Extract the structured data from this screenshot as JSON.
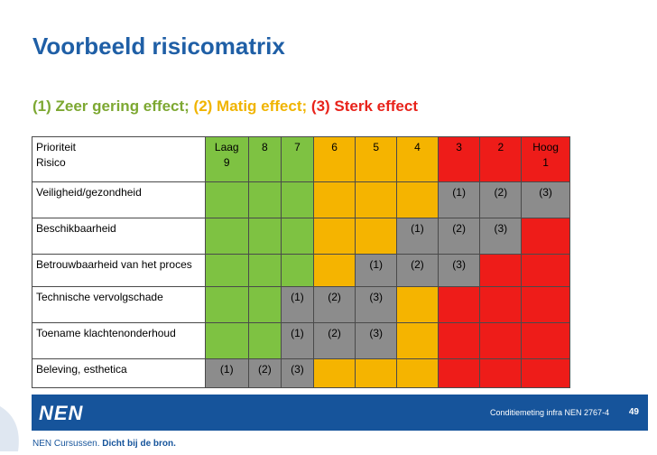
{
  "title": "Voorbeeld risicomatrix",
  "legend": {
    "item1": "(1) Zeer gering effect;",
    "item2": "(2) Matig effect;",
    "item3": "(3) Sterk effect"
  },
  "matrix": {
    "header_label": [
      "Prioriteit",
      "Risico"
    ],
    "columns": [
      {
        "line1": "Laag",
        "line2": "9",
        "color": "green"
      },
      {
        "line1": "8",
        "line2": "",
        "color": "green"
      },
      {
        "line1": "7",
        "line2": "",
        "color": "green"
      },
      {
        "line1": "6",
        "line2": "",
        "color": "orange"
      },
      {
        "line1": "5",
        "line2": "",
        "color": "orange"
      },
      {
        "line1": "4",
        "line2": "",
        "color": "orange"
      },
      {
        "line1": "3",
        "line2": "",
        "color": "red"
      },
      {
        "line1": "2",
        "line2": "",
        "color": "red"
      },
      {
        "line1": "Hoog",
        "line2": "1",
        "color": "red"
      }
    ],
    "rows": [
      {
        "label": "Veiligheid/gezondheid",
        "cells": [
          {
            "c": "green",
            "t": ""
          },
          {
            "c": "green",
            "t": ""
          },
          {
            "c": "green",
            "t": ""
          },
          {
            "c": "orange",
            "t": ""
          },
          {
            "c": "orange",
            "t": ""
          },
          {
            "c": "orange",
            "t": ""
          },
          {
            "c": "grey",
            "t": "(1)"
          },
          {
            "c": "grey",
            "t": "(2)"
          },
          {
            "c": "grey",
            "t": "(3)"
          }
        ]
      },
      {
        "label": "Beschikbaarheid",
        "cells": [
          {
            "c": "green",
            "t": ""
          },
          {
            "c": "green",
            "t": ""
          },
          {
            "c": "green",
            "t": ""
          },
          {
            "c": "orange",
            "t": ""
          },
          {
            "c": "orange",
            "t": ""
          },
          {
            "c": "grey",
            "t": "(1)"
          },
          {
            "c": "grey",
            "t": "(2)"
          },
          {
            "c": "grey",
            "t": "(3)"
          },
          {
            "c": "red",
            "t": ""
          }
        ]
      },
      {
        "label": "Betrouwbaarheid van het proces",
        "cells": [
          {
            "c": "green",
            "t": ""
          },
          {
            "c": "green",
            "t": ""
          },
          {
            "c": "green",
            "t": ""
          },
          {
            "c": "orange",
            "t": ""
          },
          {
            "c": "grey",
            "t": "(1)"
          },
          {
            "c": "grey",
            "t": "(2)"
          },
          {
            "c": "grey",
            "t": "(3)"
          },
          {
            "c": "red",
            "t": ""
          },
          {
            "c": "red",
            "t": ""
          }
        ]
      },
      {
        "label": "Technische vervolgschade",
        "cells": [
          {
            "c": "green",
            "t": ""
          },
          {
            "c": "green",
            "t": ""
          },
          {
            "c": "grey",
            "t": "(1)"
          },
          {
            "c": "grey",
            "t": "(2)"
          },
          {
            "c": "grey",
            "t": "(3)"
          },
          {
            "c": "orange",
            "t": ""
          },
          {
            "c": "red",
            "t": ""
          },
          {
            "c": "red",
            "t": ""
          },
          {
            "c": "red",
            "t": ""
          }
        ]
      },
      {
        "label": "Toename klachtenonderhoud",
        "cells": [
          {
            "c": "green",
            "t": ""
          },
          {
            "c": "green",
            "t": ""
          },
          {
            "c": "grey",
            "t": "(1)"
          },
          {
            "c": "grey",
            "t": "(2)"
          },
          {
            "c": "grey",
            "t": "(3)"
          },
          {
            "c": "orange",
            "t": ""
          },
          {
            "c": "red",
            "t": ""
          },
          {
            "c": "red",
            "t": ""
          },
          {
            "c": "red",
            "t": ""
          }
        ]
      },
      {
        "label": "Beleving, esthetica",
        "cells": [
          {
            "c": "grey",
            "t": "(1)"
          },
          {
            "c": "grey",
            "t": "(2)"
          },
          {
            "c": "grey",
            "t": "(3)"
          },
          {
            "c": "orange",
            "t": ""
          },
          {
            "c": "orange",
            "t": ""
          },
          {
            "c": "orange",
            "t": ""
          },
          {
            "c": "red",
            "t": ""
          },
          {
            "c": "red",
            "t": ""
          },
          {
            "c": "red",
            "t": ""
          }
        ]
      }
    ]
  },
  "footer": {
    "logo": "NEN",
    "text": "Conditiemeting infra NEN 2767-4",
    "page_number": "49",
    "tagline_brand": "NEN Cursussen.",
    "tagline_slogan": "Dicht bij de bron."
  },
  "colors": {
    "title": "#1f5fa6",
    "green": "#7ec242",
    "orange": "#f5b400",
    "red": "#ee1c19",
    "grey": "#8c8c8c",
    "brand": "#16549b"
  }
}
